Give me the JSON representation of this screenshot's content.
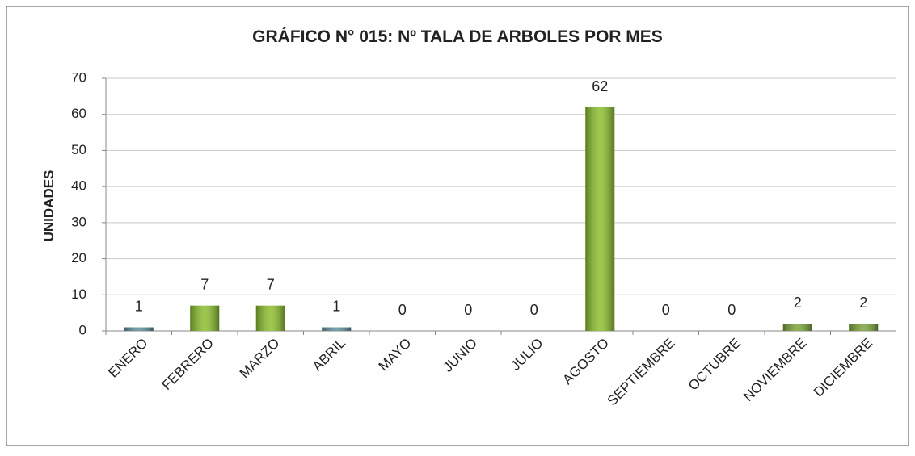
{
  "chart_data": {
    "type": "bar",
    "title": "GRÁFICO N° 015: Nº  TALA DE ARBOLES POR MES",
    "y_label": "UNIDADES",
    "categories": [
      "ENERO",
      "FEBRERO",
      "MARZO",
      "ABRIL",
      "MAYO",
      "JUNIO",
      "JULIO",
      "AGOSTO",
      "SEPTIEMBRE",
      "OCTUBRE",
      "NOVIEMBRE",
      "DICIEMBRE"
    ],
    "values": [
      1,
      7,
      7,
      1,
      0,
      0,
      0,
      62,
      0,
      0,
      2,
      2
    ],
    "colors": [
      "#5f8f9c",
      "#8cbf2e",
      "#8cbf2e",
      "#5f8f9c",
      "#5f8f9c",
      "#5f8f9c",
      "#5f8f9c",
      "#8cbf2e",
      "#5f8f9c",
      "#5f8f9c",
      "#7aa33c",
      "#7aa33c"
    ],
    "ylim": [
      0,
      70
    ],
    "yticks": [
      0,
      10,
      20,
      30,
      40,
      50,
      60,
      70
    ],
    "grid": true
  }
}
